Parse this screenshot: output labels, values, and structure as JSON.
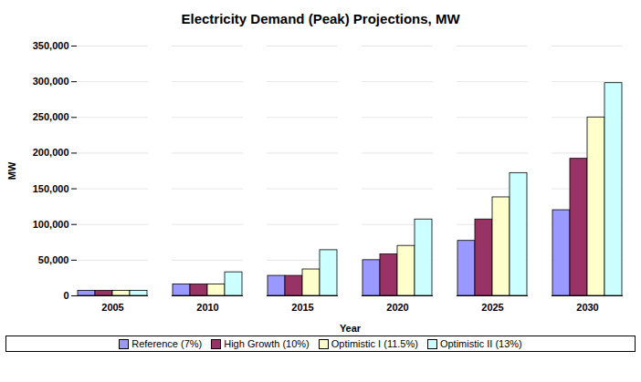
{
  "chart_data": {
    "type": "bar",
    "title": "Electricity Demand (Peak) Projections, MW",
    "x_label": "Year",
    "y_label": "MW",
    "categories": [
      "2005",
      "2010",
      "2015",
      "2020",
      "2025",
      "2030"
    ],
    "series": [
      {
        "name": "Reference (7%)",
        "color": "#9999ff",
        "values": [
          7000,
          16000,
          28000,
          50000,
          77000,
          120000
        ]
      },
      {
        "name": "High Growth (10%)",
        "color": "#993366",
        "values": [
          7000,
          16000,
          28000,
          58000,
          107000,
          192000
        ]
      },
      {
        "name": "Optimistic I (11.5%)",
        "color": "#ffffcc",
        "values": [
          7000,
          16000,
          37000,
          70000,
          138000,
          250000
        ]
      },
      {
        "name": "Optimistic II (13%)",
        "color": "#ccffff",
        "values": [
          7000,
          33000,
          64000,
          107000,
          172000,
          298000
        ]
      }
    ],
    "ylim": [
      0,
      350000
    ],
    "yticks": [
      0,
      {
        "value": 50000,
        "label": "50,000"
      },
      {
        "value": 100000,
        "label": "100,000"
      },
      {
        "value": 150000,
        "label": "150,000"
      },
      {
        "value": 200000,
        "label": "200,000"
      },
      {
        "value": 250000,
        "label": "250,000"
      },
      {
        "value": 300000,
        "label": "300,000"
      },
      {
        "value": 350000,
        "label": "350,000"
      }
    ],
    "grid": true,
    "legend": "bottom"
  }
}
